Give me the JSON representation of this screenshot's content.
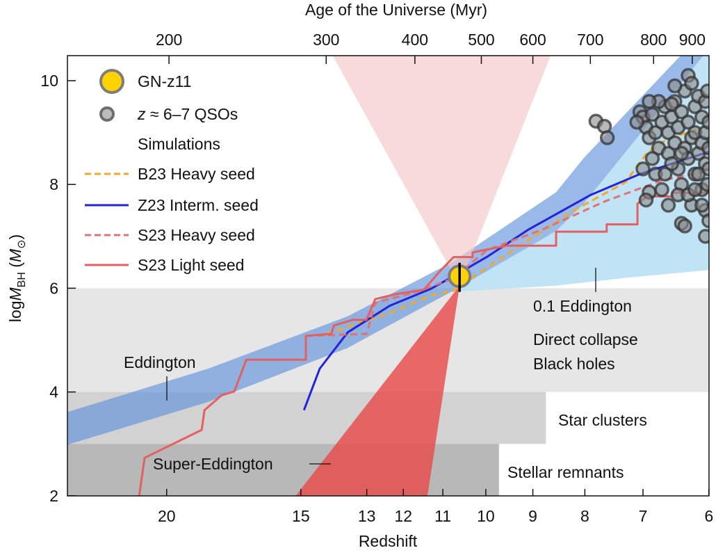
{
  "chart_data": {
    "type": "line",
    "xlabel": "Redshift",
    "x2label": "Age of the Universe (Myr)",
    "ylabel": {
      "prefix": "log",
      "symbol": "M",
      "sub": "BH",
      "unit_open": " (",
      "unit_symbol": "M",
      "unit_sub": "⊙",
      "unit_close": ")"
    },
    "x_scale": "log(1+z), reversed",
    "xlim": [
      24.7,
      6
    ],
    "ylim": [
      2,
      10.5
    ],
    "x_ticks": [
      20,
      15,
      13,
      12,
      11,
      10,
      9,
      8,
      7,
      6
    ],
    "x_tick_labels": [
      "20",
      "15",
      "13",
      "12",
      "11",
      "10",
      "9",
      "8",
      "7",
      "6"
    ],
    "y_ticks": [
      2,
      4,
      6,
      8,
      10
    ],
    "y_tick_labels": [
      "2",
      "4",
      "6",
      "8",
      "10"
    ],
    "top_ticks": [
      {
        "label": "200",
        "z": 19.9
      },
      {
        "label": "300",
        "z": 14.2
      },
      {
        "label": "400",
        "z": 11.7
      },
      {
        "label": "500",
        "z": 10.1
      },
      {
        "label": "600",
        "z": 9.0
      },
      {
        "label": "700",
        "z": 7.9
      },
      {
        "label": "800",
        "z": 6.83
      },
      {
        "label": "900",
        "z": 6.24
      }
    ],
    "legend": {
      "gnz11": "GN-z11",
      "qso_z": "z",
      "qso_rest": " ≈ 6–7 QSOs",
      "simulations": "Simulations",
      "b23": "B23 Heavy seed",
      "z23": "Z23 Interm. seed",
      "s23h": "S23 Heavy seed",
      "s23l": "S23 Light seed"
    },
    "regions": {
      "direct_collapse": {
        "label1": "Direct collapse",
        "label2": "Black holes",
        "z": [
          24.7,
          6
        ],
        "logM": [
          4,
          6
        ],
        "color": "#e6e6e6"
      },
      "star_clusters": {
        "label": "Star clusters",
        "z": [
          24.7,
          8.74
        ],
        "logM": [
          3,
          4
        ],
        "color": "#d2d2d2"
      },
      "stellar_remnants": {
        "label": "Stellar remnants",
        "z": [
          24.7,
          9.71
        ],
        "logM": [
          2,
          3
        ],
        "color": "#b8b8b8"
      }
    },
    "eddington_band": {
      "label": "Eddington",
      "color": "#5b8edb",
      "upper": [
        [
          24.7,
          3.61
        ],
        [
          18.3,
          4.45
        ],
        [
          13.55,
          5.46
        ],
        [
          10.8,
          6.49
        ],
        [
          8.54,
          7.85
        ],
        [
          8.02,
          8.51
        ],
        [
          7.29,
          9.36
        ],
        [
          6.4,
          10.5
        ]
      ],
      "lower": [
        [
          24.7,
          2.98
        ],
        [
          18.3,
          3.81
        ],
        [
          13.55,
          4.85
        ],
        [
          10.8,
          5.93
        ],
        [
          8.54,
          7.1
        ],
        [
          8.02,
          7.63
        ],
        [
          7.29,
          8.62
        ],
        [
          6.07,
          10.5
        ]
      ]
    },
    "sub_eddington_band": {
      "label": "0.1 Eddington",
      "color": "#b9e1f5",
      "lower": [
        [
          10.8,
          5.93
        ],
        [
          8.54,
          6.05
        ],
        [
          7.29,
          6.2
        ],
        [
          6.0,
          6.35
        ]
      ]
    },
    "super_eddington_wedge": {
      "label": "Super-Eddington",
      "apex": [
        10.6,
        6.05
      ],
      "bottom_z": [
        15.3,
        11.4
      ],
      "top_z": [
        14.1,
        8.6
      ],
      "color": "#e84c4c",
      "top_color": "#f6c6c6"
    },
    "series": [
      {
        "name": "B23 Heavy seed",
        "color": "#f0a92a",
        "dash": true,
        "points": [
          [
            14.2,
            5.12
          ],
          [
            12.37,
            5.52
          ],
          [
            11.29,
            5.86
          ],
          [
            10.75,
            5.95
          ],
          [
            9.98,
            6.39
          ],
          [
            9.09,
            6.93
          ],
          [
            8.15,
            7.53
          ],
          [
            7.29,
            8.04
          ],
          [
            6.94,
            8.6
          ],
          [
            6.62,
            8.87
          ],
          [
            6.0,
            9.14
          ]
        ]
      },
      {
        "name": "Z23 Interm. seed",
        "color": "#2323d8",
        "dash": false,
        "points": [
          [
            14.9,
            3.65
          ],
          [
            14.4,
            4.45
          ],
          [
            13.55,
            5.15
          ],
          [
            12.37,
            5.66
          ],
          [
            11.29,
            5.99
          ],
          [
            10.75,
            6.23
          ],
          [
            9.98,
            6.6
          ],
          [
            9.09,
            7.13
          ],
          [
            7.89,
            7.8
          ],
          [
            7.05,
            8.2
          ],
          [
            6.0,
            8.63
          ]
        ]
      },
      {
        "name": "S23 Heavy seed",
        "color": "#e07272",
        "dash": true,
        "points": [
          [
            14.84,
            5.08
          ],
          [
            13.0,
            5.12
          ],
          [
            12.76,
            5.72
          ],
          [
            11.65,
            5.93
          ],
          [
            10.75,
            6.19
          ],
          [
            9.98,
            6.73
          ],
          [
            8.81,
            7.13
          ],
          [
            7.65,
            7.67
          ],
          [
            6.72,
            8.07
          ],
          [
            6.0,
            8.27
          ]
        ]
      },
      {
        "name": "S23 Light seed",
        "color": "#e46060",
        "dash": false,
        "points": [
          [
            21.2,
            2.0
          ],
          [
            20.96,
            2.73
          ],
          [
            18.56,
            3.27
          ],
          [
            18.45,
            3.65
          ],
          [
            17.78,
            3.94
          ],
          [
            17.31,
            4.01
          ],
          [
            16.87,
            4.62
          ],
          [
            14.84,
            4.62
          ],
          [
            14.84,
            5.08
          ],
          [
            14.04,
            5.12
          ],
          [
            13.97,
            5.28
          ],
          [
            13.41,
            5.39
          ],
          [
            13.01,
            5.39
          ],
          [
            12.76,
            5.79
          ],
          [
            12.25,
            5.88
          ],
          [
            11.47,
            5.97
          ],
          [
            11.07,
            6.33
          ],
          [
            10.74,
            6.6
          ],
          [
            10.3,
            6.6
          ],
          [
            10.3,
            6.69
          ],
          [
            9.83,
            6.77
          ],
          [
            9.53,
            6.82
          ],
          [
            8.54,
            6.82
          ],
          [
            8.54,
            7.09
          ],
          [
            7.61,
            7.09
          ],
          [
            7.61,
            7.23
          ],
          [
            7.09,
            7.23
          ],
          [
            7.09,
            7.63
          ],
          [
            6.94,
            7.77
          ],
          [
            6.54,
            7.77
          ],
          [
            6.54,
            7.84
          ],
          [
            6.0,
            7.84
          ]
        ]
      }
    ],
    "gnz11": {
      "z": 10.6,
      "logM": 6.23,
      "err": [
        5.93,
        6.49
      ],
      "color": "#ffd200",
      "edge": "#7d7d7d"
    },
    "qsos": {
      "color": "#555555",
      "edge": "#333333",
      "points": [
        [
          7.05,
          9.4
        ],
        [
          7.0,
          9.3
        ],
        [
          6.95,
          9.1
        ],
        [
          7.1,
          9.2
        ],
        [
          6.9,
          8.9
        ],
        [
          6.85,
          9.35
        ],
        [
          6.8,
          9.0
        ],
        [
          6.75,
          8.7
        ],
        [
          6.7,
          9.2
        ],
        [
          6.65,
          9.5
        ],
        [
          6.6,
          8.6
        ],
        [
          6.6,
          9.0
        ],
        [
          6.55,
          9.3
        ],
        [
          6.5,
          8.8
        ],
        [
          6.5,
          9.6
        ],
        [
          6.45,
          9.1
        ],
        [
          6.45,
          8.3
        ],
        [
          6.4,
          9.4
        ],
        [
          6.4,
          8.0
        ],
        [
          6.35,
          8.7
        ],
        [
          6.35,
          9.8
        ],
        [
          6.3,
          9.2
        ],
        [
          6.3,
          10.1
        ],
        [
          6.3,
          8.5
        ],
        [
          6.25,
          8.9
        ],
        [
          6.25,
          7.6
        ],
        [
          6.2,
          9.5
        ],
        [
          6.2,
          8.2
        ],
        [
          6.2,
          9.0
        ],
        [
          6.15,
          9.7
        ],
        [
          6.15,
          8.6
        ],
        [
          6.1,
          9.3
        ],
        [
          6.1,
          7.9
        ],
        [
          6.1,
          8.8
        ],
        [
          6.05,
          9.0
        ],
        [
          6.05,
          9.6
        ],
        [
          6.05,
          8.4
        ],
        [
          6.05,
          7.5
        ],
        [
          6.02,
          9.8
        ],
        [
          6.02,
          8.0
        ],
        [
          6.0,
          9.2
        ],
        [
          6.0,
          8.7
        ],
        [
          6.0,
          7.3
        ],
        [
          7.0,
          8.3
        ],
        [
          6.9,
          7.85
        ],
        [
          6.95,
          7.7
        ],
        [
          6.7,
          7.9
        ],
        [
          6.6,
          7.6
        ],
        [
          6.4,
          7.25
        ],
        [
          6.35,
          7.2
        ],
        [
          6.05,
          7.0
        ],
        [
          6.8,
          8.2
        ],
        [
          6.55,
          8.4
        ],
        [
          6.75,
          9.6
        ],
        [
          6.5,
          9.9
        ],
        [
          6.45,
          7.8
        ],
        [
          7.8,
          9.22
        ],
        [
          7.65,
          9.12
        ],
        [
          7.6,
          8.9
        ],
        [
          6.55,
          9.55
        ],
        [
          6.25,
          9.95
        ],
        [
          6.15,
          8.2
        ],
        [
          6.3,
          7.8
        ],
        [
          6.9,
          9.6
        ],
        [
          6.85,
          8.5
        ],
        [
          6.65,
          8.2
        ],
        [
          6.4,
          8.6
        ],
        [
          6.2,
          7.9
        ],
        [
          6.1,
          7.6
        ],
        [
          6.0,
          8.3
        ]
      ]
    },
    "grid": false,
    "legend_position": "top-left"
  }
}
